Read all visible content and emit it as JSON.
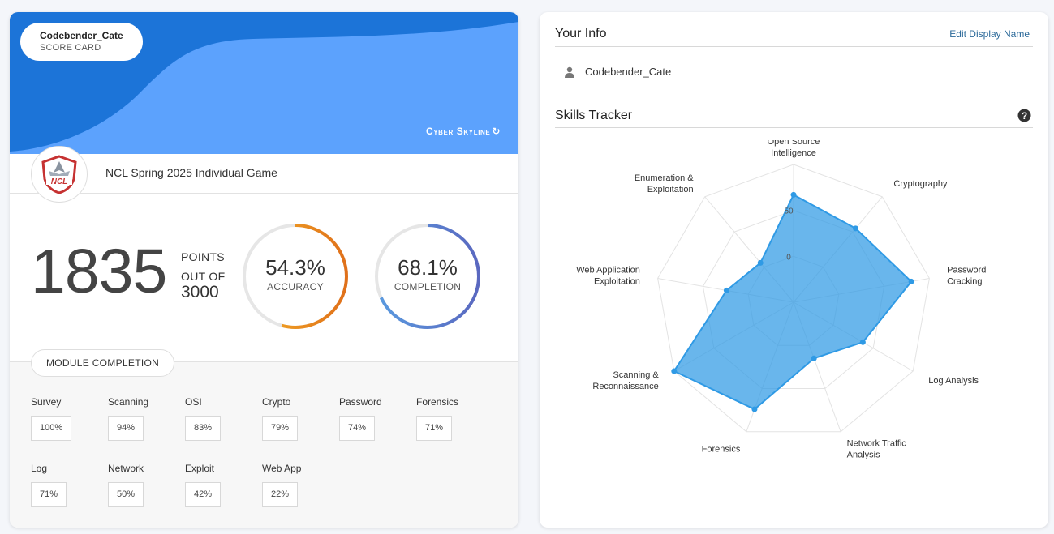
{
  "scorecard": {
    "player_name": "Codebender_Cate",
    "subtitle": "SCORE CARD",
    "brand": "Cyber Skyline",
    "game_name": "NCL Spring 2025 Individual Game",
    "logo_text": "NCL",
    "points": "1835",
    "points_label": "POINTS",
    "out_of_label": "OUT OF",
    "total": "3000",
    "accuracy": {
      "value": "54.3%",
      "label": "ACCURACY",
      "fraction": 0.543,
      "color_start": "#f5b227",
      "color_end": "#e0701a"
    },
    "completion": {
      "value": "68.1%",
      "label": "COMPLETION",
      "fraction": 0.681,
      "color_start": "#5a9be0",
      "color_end": "#5a68c0"
    },
    "module_title": "MODULE COMPLETION",
    "modules": [
      {
        "name": "Survey",
        "value": "100%"
      },
      {
        "name": "Scanning",
        "value": "94%"
      },
      {
        "name": "OSI",
        "value": "83%"
      },
      {
        "name": "Crypto",
        "value": "79%"
      },
      {
        "name": "Password",
        "value": "74%"
      },
      {
        "name": "Forensics",
        "value": "71%"
      },
      {
        "name": "Log",
        "value": "71%"
      },
      {
        "name": "Network",
        "value": "50%"
      },
      {
        "name": "Exploit",
        "value": "42%"
      },
      {
        "name": "Web App",
        "value": "22%"
      }
    ],
    "colors": {
      "banner_dark": "#1c74d8",
      "banner_light": "#5ca2fd"
    }
  },
  "info": {
    "title": "Your Info",
    "edit_label": "Edit Display Name",
    "username": "Codebender_Cate",
    "user_icon": "person-icon"
  },
  "skills": {
    "title": "Skills Tracker",
    "help_icon": "question-circle-icon"
  },
  "chart_data": {
    "type": "radar",
    "title": "Skills Tracker",
    "axes": [
      "Open Source Intelligence",
      "Cryptography",
      "Password Cracking",
      "Log Analysis",
      "Network Traffic Analysis",
      "Forensics",
      "Scanning & Reconnaissance",
      "Web Application Exploitation",
      "Enumeration & Exploitation"
    ],
    "axis_label_lines": [
      [
        "Open Source",
        "Intelligence"
      ],
      [
        "Cryptography"
      ],
      [
        "Password",
        "Cracking"
      ],
      [
        "Log Analysis"
      ],
      [
        "Network Traffic",
        "Analysis"
      ],
      [
        "Forensics"
      ],
      [
        "Scanning &",
        "Reconnaissance"
      ],
      [
        "Web Application",
        "Exploitation"
      ],
      [
        "Enumeration &",
        "Exploitation"
      ]
    ],
    "tick_labels": [
      "0",
      "50"
    ],
    "range": [
      -50,
      100
    ],
    "rings": [
      -50,
      0,
      50,
      100
    ],
    "series": [
      {
        "values": [
          67,
          55,
          80,
          37,
          15,
          74,
          100,
          24,
          6
        ],
        "color": "#2f9ae5"
      }
    ]
  }
}
